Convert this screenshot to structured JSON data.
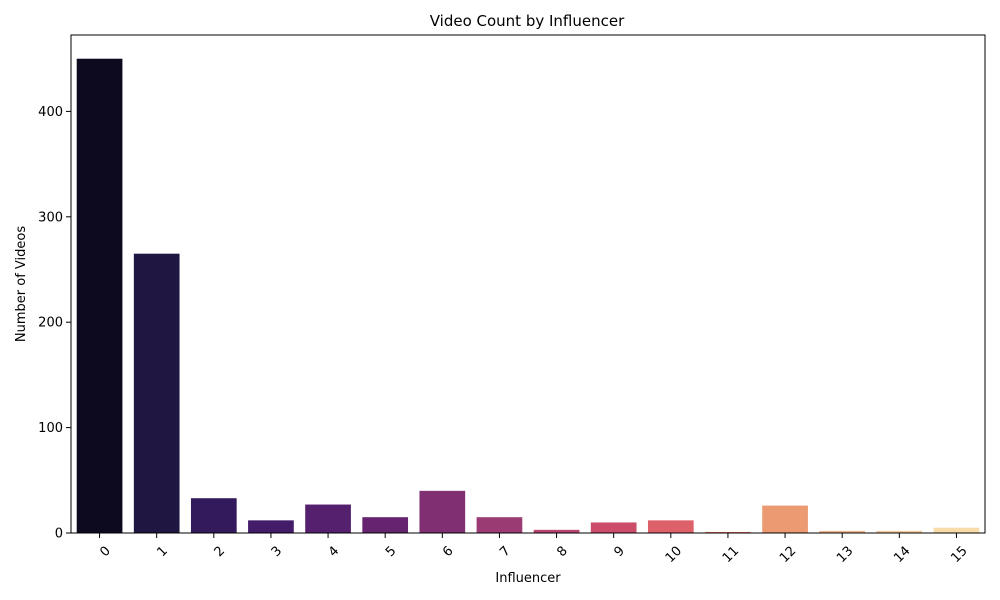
{
  "chart_data": {
    "type": "bar",
    "title": "Video Count by Influencer",
    "xlabel": "Influencer",
    "ylabel": "Number of Videos",
    "categories": [
      "0",
      "1",
      "2",
      "3",
      "4",
      "5",
      "6",
      "7",
      "8",
      "9",
      "10",
      "11",
      "12",
      "13",
      "14",
      "15"
    ],
    "values": [
      450,
      265,
      33,
      12,
      27,
      15,
      40,
      15,
      3,
      10,
      12,
      1,
      26,
      2,
      2,
      5
    ],
    "colors": [
      "#0d0a1f",
      "#1f1642",
      "#331a5c",
      "#431c6a",
      "#55206d",
      "#66236f",
      "#7f2f72",
      "#9b3b74",
      "#b84471",
      "#cc4d6a",
      "#dd6169",
      "#ea7664",
      "#eb9a72",
      "#f4b48a",
      "#f6c899",
      "#f7dba9"
    ],
    "yticks": [
      0,
      100,
      200,
      300,
      400
    ],
    "ylim": [
      0,
      472.5
    ],
    "grid": false,
    "legend": "none"
  }
}
